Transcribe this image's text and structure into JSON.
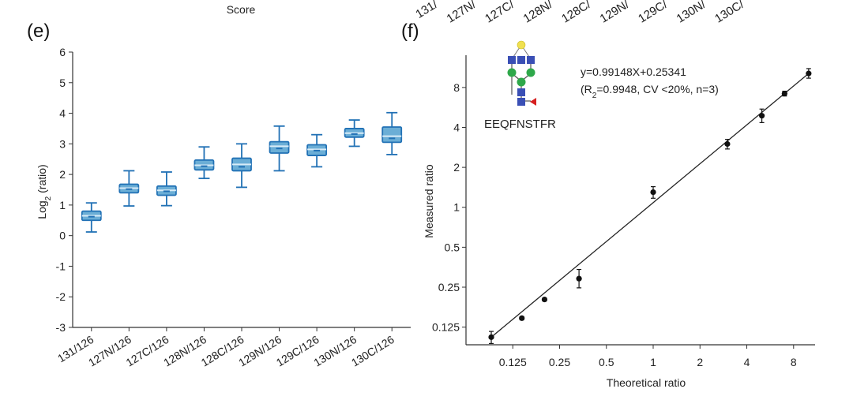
{
  "header_fragments": {
    "score_label": "Score",
    "cropped_ticks": [
      "131/",
      "127N/",
      "127C/",
      "128N/",
      "128C/",
      "129N/",
      "129C/",
      "130N/",
      "130C/"
    ]
  },
  "colors": {
    "box_fill": "#6baed6",
    "box_stroke": "#2171b5",
    "axis": "#333333",
    "point": "#111111",
    "glycan_yellow": "#f0e050",
    "glycan_blue": "#3a4fb5",
    "glycan_green": "#2ea84a",
    "glycan_red": "#d62020"
  },
  "chart_data": [
    {
      "panel": "(e)",
      "type": "box",
      "title": "",
      "xlabel": "",
      "ylabel_main": "Log",
      "ylabel_sub": "2",
      "ylabel_rest": " (ratio)",
      "ylim": [
        -3,
        6
      ],
      "yticks": [
        -3,
        -2,
        -1,
        0,
        1,
        2,
        3,
        4,
        5,
        6
      ],
      "categories": [
        "131/126",
        "127N/126",
        "127C/126",
        "128N/126",
        "128C/126",
        "129N/126",
        "129C/126",
        "130N/126",
        "130C/126"
      ],
      "boxes": [
        {
          "min": 0.12,
          "q1": 0.5,
          "median": 0.65,
          "mean": 0.62,
          "q3": 0.8,
          "max": 1.07
        },
        {
          "min": 0.97,
          "q1": 1.4,
          "median": 1.55,
          "mean": 1.52,
          "q3": 1.68,
          "max": 2.12
        },
        {
          "min": 0.98,
          "q1": 1.32,
          "median": 1.48,
          "mean": 1.45,
          "q3": 1.62,
          "max": 2.08
        },
        {
          "min": 1.87,
          "q1": 2.15,
          "median": 2.3,
          "mean": 2.27,
          "q3": 2.47,
          "max": 2.9
        },
        {
          "min": 1.58,
          "q1": 2.12,
          "median": 2.33,
          "mean": 2.25,
          "q3": 2.53,
          "max": 3.0
        },
        {
          "min": 2.12,
          "q1": 2.7,
          "median": 2.92,
          "mean": 2.85,
          "q3": 3.07,
          "max": 3.58
        },
        {
          "min": 2.25,
          "q1": 2.62,
          "median": 2.82,
          "mean": 2.78,
          "q3": 2.97,
          "max": 3.3
        },
        {
          "min": 2.92,
          "q1": 3.22,
          "median": 3.35,
          "mean": 3.32,
          "q3": 3.5,
          "max": 3.78
        },
        {
          "min": 2.65,
          "q1": 3.05,
          "median": 3.25,
          "mean": 3.18,
          "q3": 3.55,
          "max": 4.02
        }
      ]
    },
    {
      "panel": "(f)",
      "type": "scatter",
      "xscale": "log2",
      "yscale": "log2",
      "xlabel": "Theoretical ratio",
      "ylabel": "Measured ratio",
      "xlim": [
        0.0625,
        11
      ],
      "ylim": [
        0.092,
        14
      ],
      "xticks": [
        0.125,
        0.25,
        0.5,
        1,
        2,
        4,
        8
      ],
      "xtick_labels": [
        "0.125",
        "0.25",
        "0.5",
        "1",
        "2",
        "4",
        "8"
      ],
      "yticks": [
        0.125,
        0.25,
        0.5,
        1,
        2,
        4,
        8
      ],
      "ytick_labels": [
        "0.125",
        "0.25",
        "0.5",
        "1",
        "2",
        "4",
        "8"
      ],
      "x": [
        0.0909,
        0.1429,
        0.2,
        0.3333,
        1,
        3,
        5,
        7,
        10
      ],
      "y": [
        0.105,
        0.146,
        0.202,
        0.29,
        1.3,
        3.0,
        4.9,
        7.2,
        10.2
      ],
      "yerr_low": [
        0.011,
        0.004,
        0.005,
        0.043,
        0.13,
        0.25,
        0.55,
        0.3,
        0.8
      ],
      "yerr_high": [
        0.011,
        0.004,
        0.005,
        0.05,
        0.13,
        0.25,
        0.6,
        0.3,
        0.9
      ],
      "fit": {
        "slope": 0.99148,
        "intercept": 0.25341,
        "x_range": [
          0.0909,
          10
        ]
      },
      "equation": "y=0.99148X+0.25341",
      "stats_prefix": "(R",
      "stats_sub": "2",
      "stats_rest": "=0.9948, CV <20%, n=3)",
      "peptide": "EEQFNSTFR",
      "glycan_icon": "complex-n-glycan-icon"
    }
  ]
}
